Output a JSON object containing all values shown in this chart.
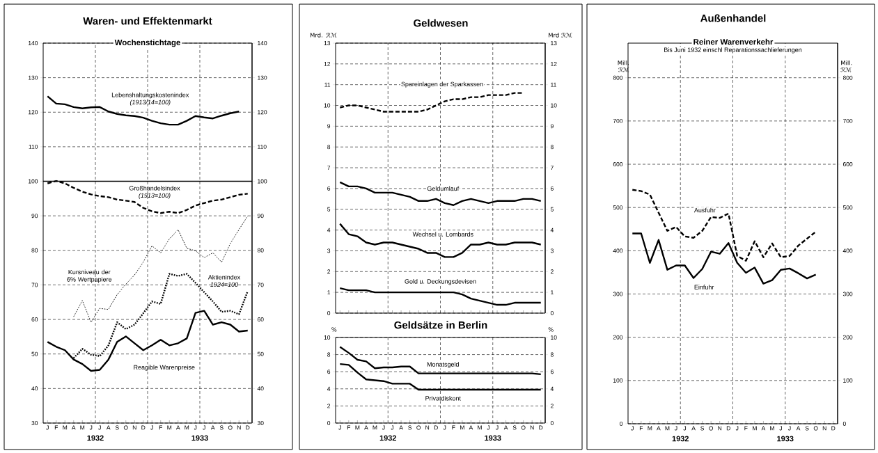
{
  "chart_data": [
    {
      "type": "line",
      "title": "Waren- und Effektenmarkt",
      "subtitle": "Wochenstichtage",
      "categories": [
        "J",
        "F",
        "M",
        "A",
        "M",
        "J",
        "J",
        "A",
        "S",
        "O",
        "N",
        "D",
        "J",
        "F",
        "M",
        "A",
        "M",
        "J",
        "J",
        "A",
        "S",
        "O",
        "N",
        "D"
      ],
      "series": [
        {
          "name": "Lebenshaltungskostenindex *(1913/14=100)*",
          "color": "#000000",
          "line_style": "solid",
          "values": [
            124.6,
            122.5,
            122.3,
            121.5,
            121.1,
            121.4,
            121.5,
            120.2,
            119.5,
            119.1,
            118.9,
            118.4,
            117.5,
            116.8,
            116.4,
            116.4,
            117.5,
            118.9,
            118.5,
            118.2,
            119.0,
            119.7,
            120.2,
            null
          ]
        },
        {
          "name": "Großhandelsindex *(1913=100)*",
          "color": "#000000",
          "line_style": "dashed",
          "values": [
            99.4,
            100.1,
            99.4,
            98.1,
            97.0,
            96.2,
            95.7,
            95.4,
            94.7,
            94.4,
            94.0,
            92.3,
            91.3,
            90.8,
            91.2,
            90.8,
            91.7,
            93.0,
            93.7,
            94.4,
            94.7,
            95.4,
            96.1,
            96.4
          ]
        },
        {
          "name": "Kursniveau der 6% Wertpapiere",
          "color": "#000000",
          "line_style": "dotted",
          "values": [
            null,
            null,
            null,
            60.8,
            65.5,
            59.2,
            63.2,
            62.9,
            67.2,
            70.2,
            72.9,
            76.6,
            81.3,
            79.3,
            83.3,
            86.0,
            80.6,
            79.9,
            77.9,
            79.3,
            76.6,
            82.0,
            86.0,
            90.0
          ]
        },
        {
          "name": "Aktienindex *1924=100*",
          "color": "#000000",
          "line_style": "dotted",
          "values": [
            null,
            null,
            null,
            48.8,
            51.5,
            49.8,
            49.4,
            52.5,
            59.2,
            57.2,
            58.5,
            61.8,
            65.2,
            64.5,
            73.2,
            72.6,
            73.2,
            70.6,
            67.9,
            65.2,
            62.2,
            62.5,
            61.5,
            68.2
          ]
        },
        {
          "name": "Reagible Warenpreise",
          "color": "#000000",
          "line_style": "solid",
          "values": [
            53.5,
            52.1,
            51.1,
            48.4,
            47.1,
            45.1,
            45.4,
            48.4,
            53.5,
            55.1,
            53.1,
            51.1,
            52.5,
            54.1,
            52.5,
            53.1,
            54.5,
            61.9,
            62.5,
            58.5,
            59.2,
            58.5,
            56.5,
            56.8
          ]
        }
      ],
      "ylim": [
        30,
        140
      ],
      "yticks": [
        30,
        40,
        50,
        60,
        70,
        80,
        90,
        100,
        110,
        120,
        130,
        140
      ],
      "y2lim": [
        30,
        140
      ],
      "y2ticks": [
        30,
        40,
        50,
        60,
        70,
        80,
        90,
        100,
        110,
        120,
        130,
        140
      ],
      "ref_lines": [
        {
          "axis": "y",
          "value": 100
        }
      ],
      "grid": true,
      "annotations": [
        "1932",
        "1933"
      ]
    },
    {
      "type": "line",
      "title": "Geldwesen",
      "ylabel": "Mrd. ℛℳ",
      "y2label": "Mrd ℛℳ",
      "categories": [
        null,
        null,
        null,
        null,
        null,
        null,
        null,
        null,
        null,
        null,
        null,
        null,
        null,
        null,
        null,
        null,
        null,
        null,
        null,
        null,
        null,
        null,
        null,
        null
      ],
      "series": [
        {
          "name": "Spareinlagen der Sparkassen",
          "color": "#000000",
          "line_style": "dashed",
          "values": [
            9.9,
            10.0,
            10.0,
            9.9,
            9.8,
            9.7,
            9.7,
            9.7,
            9.7,
            9.7,
            9.8,
            10.0,
            10.2,
            10.3,
            10.3,
            10.4,
            10.4,
            10.5,
            10.5,
            10.5,
            10.6,
            10.6,
            null,
            null
          ]
        },
        {
          "name": "Geldumlauf",
          "color": "#000000",
          "line_style": "solid",
          "values": [
            6.3,
            6.1,
            6.1,
            6.0,
            5.8,
            5.8,
            5.8,
            5.7,
            5.6,
            5.4,
            5.4,
            5.5,
            5.3,
            5.2,
            5.4,
            5.5,
            5.4,
            5.3,
            5.4,
            5.4,
            5.4,
            5.5,
            5.5,
            5.4
          ]
        },
        {
          "name": "Wechsel u. Lombards",
          "color": "#000000",
          "line_style": "solid",
          "values": [
            4.3,
            3.8,
            3.7,
            3.4,
            3.3,
            3.4,
            3.4,
            3.3,
            3.2,
            3.1,
            2.9,
            2.9,
            2.7,
            2.7,
            2.9,
            3.3,
            3.3,
            3.4,
            3.3,
            3.3,
            3.4,
            3.4,
            3.4,
            3.3
          ]
        },
        {
          "name": "Gold u. Deckungsdevisen",
          "color": "#000000",
          "line_style": "solid",
          "values": [
            1.2,
            1.1,
            1.1,
            1.1,
            1.0,
            1.0,
            1.0,
            1.0,
            1.0,
            1.0,
            1.0,
            1.0,
            1.0,
            1.0,
            0.9,
            0.7,
            0.6,
            0.5,
            0.4,
            0.4,
            0.5,
            0.5,
            0.5,
            0.5
          ]
        }
      ],
      "ylim": [
        0,
        13
      ],
      "yticks": [
        0,
        1,
        2,
        3,
        4,
        5,
        6,
        7,
        8,
        9,
        10,
        11,
        12,
        13
      ],
      "y2lim": [
        0,
        13
      ],
      "y2ticks": [
        0,
        1,
        2,
        3,
        4,
        5,
        6,
        7,
        8,
        9,
        10,
        11,
        12,
        13
      ],
      "grid": true,
      "tick_labels": "y"
    },
    {
      "type": "line",
      "title": "Geldsätze in Berlin",
      "ylabel": "%",
      "y2label": "%",
      "categories": [
        "J",
        "F",
        "M",
        "A",
        "M",
        "J",
        "J",
        "A",
        "S",
        "O",
        "N",
        "D",
        "J",
        "F",
        "M",
        "A",
        "M",
        "J",
        "J",
        "A",
        "S",
        "O",
        "N",
        "D"
      ],
      "series": [
        {
          "name": "Monatsgeld",
          "color": "#000000",
          "line_style": "solid",
          "values": [
            8.9,
            8.2,
            7.4,
            7.2,
            6.4,
            6.5,
            6.5,
            6.6,
            6.6,
            5.8,
            5.8,
            5.8,
            5.8,
            5.8,
            5.8,
            5.8,
            5.8,
            5.8,
            5.8,
            5.8,
            5.8,
            5.8,
            5.8,
            5.7
          ]
        },
        {
          "name": "Privatdiskont",
          "color": "#000000",
          "line_style": "solid",
          "values": [
            6.9,
            6.8,
            5.9,
            5.1,
            5.0,
            4.9,
            4.6,
            4.6,
            4.6,
            3.9,
            3.9,
            3.9,
            3.9,
            3.9,
            3.9,
            3.9,
            3.9,
            3.9,
            3.9,
            3.9,
            3.9,
            3.9,
            3.9,
            3.9
          ]
        }
      ],
      "ylim": [
        0,
        10
      ],
      "yticks": [
        0,
        2,
        4,
        6,
        8,
        10
      ],
      "y2lim": [
        0,
        10
      ],
      "y2ticks": [
        0,
        2,
        4,
        6,
        8,
        10
      ],
      "grid": true,
      "annotations": [
        "1932",
        "1933"
      ]
    },
    {
      "type": "line",
      "title": "Außenhandel",
      "subtitle": "Reiner Warenverkehr",
      "ylabel": "Mill. ℛℳ",
      "y2label": "Mill. ℛℳ",
      "categories": [
        "J",
        "F",
        "M",
        "A",
        "M",
        "J",
        "J",
        "A",
        "S",
        "O",
        "N",
        "D",
        "J",
        "F",
        "M",
        "A",
        "M",
        "J",
        "J",
        "A",
        "S",
        "O",
        "N",
        "D"
      ],
      "series": [
        {
          "name": "Ausfuhr",
          "color": "#000000",
          "line_style": "dashed",
          "values": [
            541,
            538,
            530,
            488,
            446,
            455,
            433,
            430,
            446,
            478,
            476,
            486,
            388,
            377,
            422,
            385,
            417,
            385,
            388,
            412,
            428,
            444,
            null,
            null
          ]
        },
        {
          "name": "Einfuhr",
          "color": "#000000",
          "line_style": "solid",
          "values": [
            440,
            440,
            372,
            425,
            356,
            366,
            366,
            337,
            358,
            398,
            393,
            418,
            372,
            349,
            361,
            324,
            332,
            356,
            359,
            348,
            336,
            345,
            null,
            null
          ]
        }
      ],
      "ylim": [
        0,
        880
      ],
      "yticks": [
        0,
        100,
        200,
        300,
        400,
        500,
        600,
        700,
        800
      ],
      "y2lim": [
        0,
        880
      ],
      "y2ticks": [
        0,
        100,
        200,
        300,
        400,
        500,
        600,
        700,
        800
      ],
      "grid": true,
      "annotations": [
        "Bis Juni 1932 einschl Reparationssachlieferungen",
        "1932",
        "1933"
      ]
    }
  ]
}
